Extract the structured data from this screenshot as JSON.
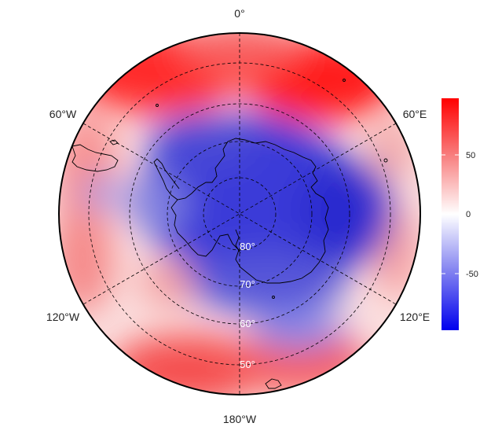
{
  "map": {
    "projection": "south-polar-stereographic",
    "longitude_labels": {
      "top": "0°",
      "upper_left": "60°W",
      "upper_right": "60°E",
      "lower_left": "120°W",
      "lower_right": "120°E",
      "bottom": "180°W"
    },
    "latitude_labels": [
      "80°",
      "70°",
      "60°",
      "50°"
    ],
    "graticule": "dashed",
    "coastlines": true
  },
  "colorbar": {
    "ticks": [
      "50",
      "0",
      "-50"
    ],
    "min": -95,
    "max": 95,
    "colors": {
      "low": "#0000ff",
      "mid": "#ffffff",
      "high": "#ff0000"
    }
  }
}
